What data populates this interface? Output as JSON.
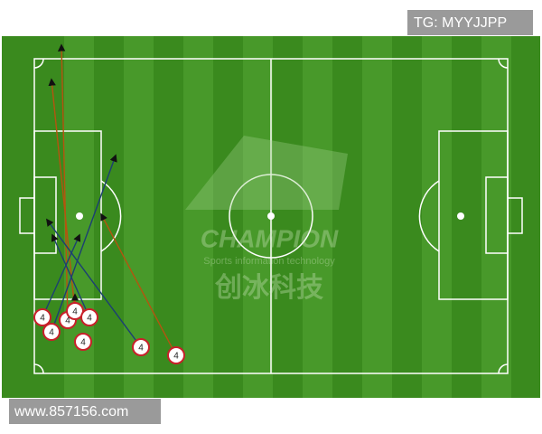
{
  "header": {
    "tag": "TG: MYYJJPP"
  },
  "watermark": {
    "brand": "CHAMPION",
    "tagline": "Sports information technology",
    "chinese": "创冰科技"
  },
  "footer": {
    "url": "www.857156.com"
  },
  "markers": [
    "4",
    "4",
    "4",
    "4",
    "4",
    "4",
    "4",
    "4"
  ]
}
